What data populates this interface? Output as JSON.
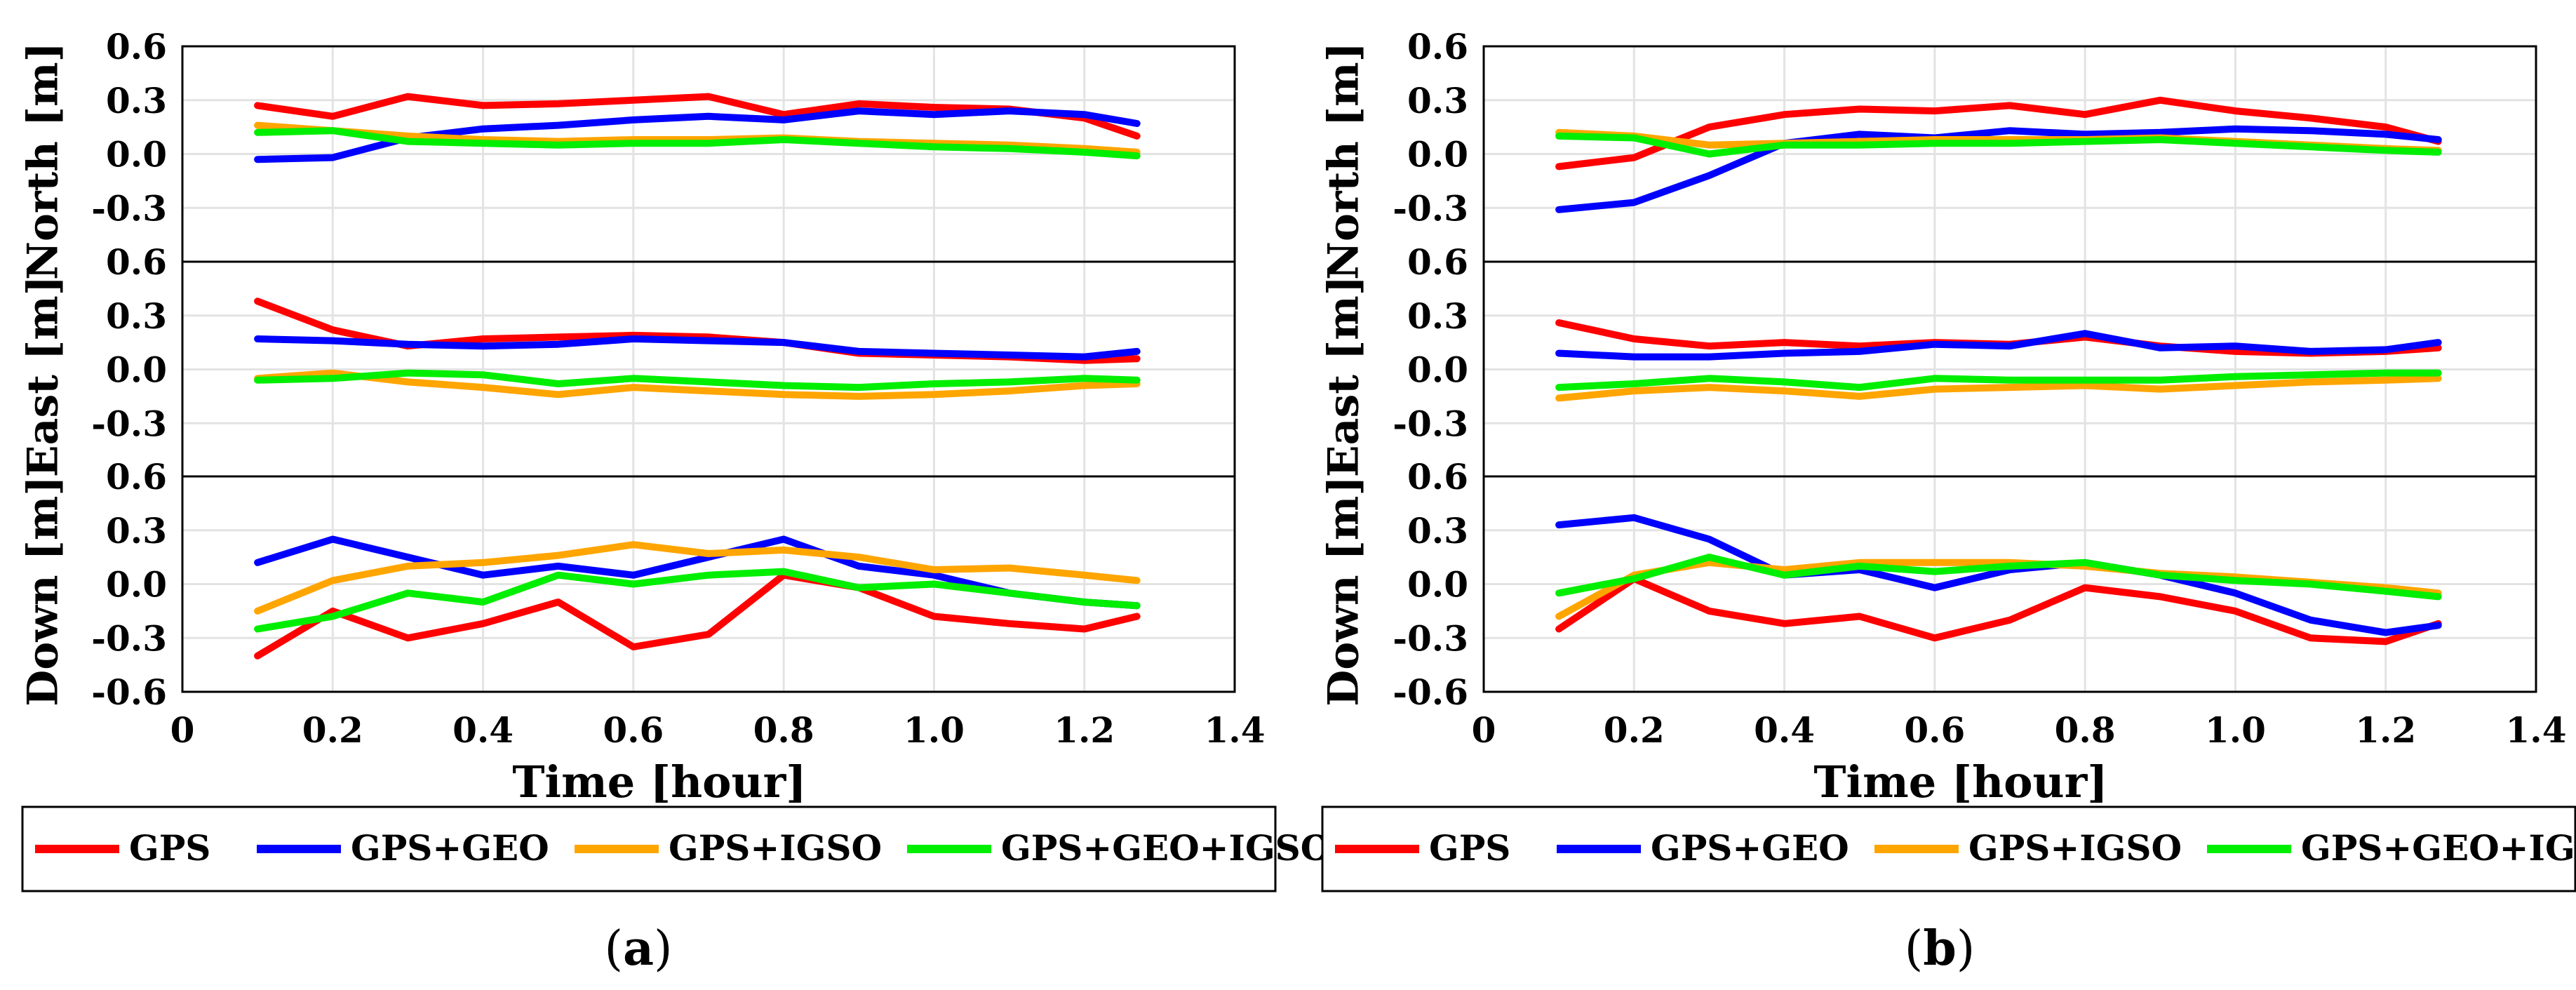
{
  "chart_data": [
    {
      "id": "a",
      "type": "line",
      "caption": "(a)",
      "xlabel": "Time [hour]",
      "xlim": [
        0,
        1.4
      ],
      "xticks": [
        0,
        0.2,
        0.4,
        0.6,
        0.8,
        1.0,
        1.2,
        1.4
      ],
      "xtick_labels": [
        "0",
        "0.2",
        "0.4",
        "0.6",
        "0.8",
        "1.0",
        "1.2",
        "1.4"
      ],
      "ylim": [
        -0.6,
        0.6
      ],
      "yticks": [
        0.6,
        0.3,
        0.0,
        -0.3,
        -0.6
      ],
      "ytick_labels": [
        "0.6",
        "0.3",
        "0.0",
        "-0.3",
        "-0.6"
      ],
      "grid": true,
      "legend_placement": "below",
      "legend": [
        "GPS",
        "GPS+GEO",
        "GPS+IGSO",
        "GPS+GEO+IGSO"
      ],
      "colors": {
        "GPS": "#ff0000",
        "GPS+GEO": "#0000ff",
        "GPS+IGSO": "#ffa500",
        "GPS+GEO+IGSO": "#00ee00"
      },
      "x": [
        0.1,
        0.2,
        0.3,
        0.4,
        0.5,
        0.6,
        0.7,
        0.8,
        0.9,
        1.0,
        1.1,
        1.2,
        1.27
      ],
      "panels": [
        {
          "ylabel": "North [m]",
          "series": [
            {
              "name": "GPS",
              "values": [
                0.27,
                0.21,
                0.32,
                0.27,
                0.28,
                0.3,
                0.32,
                0.22,
                0.28,
                0.26,
                0.25,
                0.2,
                0.1
              ]
            },
            {
              "name": "GPS+GEO",
              "values": [
                -0.03,
                -0.02,
                0.09,
                0.14,
                0.16,
                0.19,
                0.21,
                0.19,
                0.24,
                0.22,
                0.24,
                0.22,
                0.17
              ]
            },
            {
              "name": "GPS+IGSO",
              "values": [
                0.16,
                0.13,
                0.1,
                0.08,
                0.07,
                0.08,
                0.08,
                0.09,
                0.07,
                0.06,
                0.05,
                0.03,
                0.01
              ]
            },
            {
              "name": "GPS+GEO+IGSO",
              "values": [
                0.12,
                0.13,
                0.07,
                0.06,
                0.05,
                0.06,
                0.06,
                0.08,
                0.06,
                0.04,
                0.03,
                0.01,
                -0.01
              ]
            }
          ]
        },
        {
          "ylabel": "East [m]",
          "series": [
            {
              "name": "GPS",
              "values": [
                0.38,
                0.22,
                0.13,
                0.17,
                0.18,
                0.19,
                0.18,
                0.15,
                0.09,
                0.08,
                0.07,
                0.05,
                0.06
              ]
            },
            {
              "name": "GPS+GEO",
              "values": [
                0.17,
                0.16,
                0.14,
                0.13,
                0.14,
                0.17,
                0.16,
                0.15,
                0.1,
                0.09,
                0.08,
                0.07,
                0.1
              ]
            },
            {
              "name": "GPS+IGSO",
              "values": [
                -0.05,
                -0.02,
                -0.07,
                -0.1,
                -0.14,
                -0.1,
                -0.12,
                -0.14,
                -0.15,
                -0.14,
                -0.12,
                -0.09,
                -0.08
              ]
            },
            {
              "name": "GPS+GEO+IGSO",
              "values": [
                -0.06,
                -0.05,
                -0.02,
                -0.03,
                -0.08,
                -0.05,
                -0.07,
                -0.09,
                -0.1,
                -0.08,
                -0.07,
                -0.05,
                -0.06
              ]
            }
          ]
        },
        {
          "ylabel": "Down [m]",
          "series": [
            {
              "name": "GPS",
              "values": [
                -0.4,
                -0.15,
                -0.3,
                -0.22,
                -0.1,
                -0.35,
                -0.28,
                0.05,
                -0.02,
                -0.18,
                -0.22,
                -0.25,
                -0.18
              ]
            },
            {
              "name": "GPS+GEO",
              "values": [
                0.12,
                0.25,
                0.15,
                0.05,
                0.1,
                0.05,
                0.15,
                0.25,
                0.1,
                0.05,
                -0.05,
                -0.1,
                -0.12
              ]
            },
            {
              "name": "GPS+IGSO",
              "values": [
                -0.15,
                0.02,
                0.1,
                0.12,
                0.16,
                0.22,
                0.17,
                0.19,
                0.15,
                0.08,
                0.09,
                0.05,
                0.02
              ]
            },
            {
              "name": "GPS+GEO+IGSO",
              "values": [
                -0.25,
                -0.18,
                -0.05,
                -0.1,
                0.05,
                0.0,
                0.05,
                0.07,
                -0.02,
                0.0,
                -0.05,
                -0.1,
                -0.12
              ]
            }
          ]
        }
      ]
    },
    {
      "id": "b",
      "type": "line",
      "caption": "(b)",
      "xlabel": "Time [hour]",
      "xlim": [
        0,
        1.4
      ],
      "xticks": [
        0,
        0.2,
        0.4,
        0.6,
        0.8,
        1.0,
        1.2,
        1.4
      ],
      "xtick_labels": [
        "0",
        "0.2",
        "0.4",
        "0.6",
        "0.8",
        "1.0",
        "1.2",
        "1.4"
      ],
      "ylim": [
        -0.6,
        0.6
      ],
      "yticks": [
        0.6,
        0.3,
        0.0,
        -0.3,
        -0.6
      ],
      "ytick_labels": [
        "0.6",
        "0.3",
        "0.0",
        "-0.3",
        "-0.6"
      ],
      "grid": true,
      "legend_placement": "below",
      "legend": [
        "GPS",
        "GPS+GEO",
        "GPS+IGSO",
        "GPS+GEO+IGSO"
      ],
      "colors": {
        "GPS": "#ff0000",
        "GPS+GEO": "#0000ff",
        "GPS+IGSO": "#ffa500",
        "GPS+GEO+IGSO": "#00ee00"
      },
      "x": [
        0.1,
        0.2,
        0.3,
        0.4,
        0.5,
        0.6,
        0.7,
        0.8,
        0.9,
        1.0,
        1.1,
        1.2,
        1.27
      ],
      "panels": [
        {
          "ylabel": "North [m]",
          "series": [
            {
              "name": "GPS",
              "values": [
                -0.07,
                -0.02,
                0.15,
                0.22,
                0.25,
                0.24,
                0.27,
                0.22,
                0.3,
                0.24,
                0.2,
                0.15,
                0.07
              ]
            },
            {
              "name": "GPS+GEO",
              "values": [
                -0.31,
                -0.27,
                -0.12,
                0.06,
                0.11,
                0.09,
                0.13,
                0.11,
                0.12,
                0.14,
                0.13,
                0.11,
                0.08
              ]
            },
            {
              "name": "GPS+IGSO",
              "values": [
                0.12,
                0.1,
                0.05,
                0.06,
                0.07,
                0.08,
                0.08,
                0.08,
                0.09,
                0.07,
                0.05,
                0.03,
                0.02
              ]
            },
            {
              "name": "GPS+GEO+IGSO",
              "values": [
                0.1,
                0.09,
                0.0,
                0.05,
                0.05,
                0.06,
                0.06,
                0.07,
                0.08,
                0.06,
                0.04,
                0.02,
                0.01
              ]
            }
          ]
        },
        {
          "ylabel": "East [m]",
          "series": [
            {
              "name": "GPS",
              "values": [
                0.26,
                0.17,
                0.13,
                0.15,
                0.13,
                0.15,
                0.14,
                0.18,
                0.13,
                0.1,
                0.09,
                0.1,
                0.12
              ]
            },
            {
              "name": "GPS+GEO",
              "values": [
                0.09,
                0.07,
                0.07,
                0.09,
                0.1,
                0.14,
                0.13,
                0.2,
                0.12,
                0.13,
                0.1,
                0.11,
                0.15
              ]
            },
            {
              "name": "GPS+IGSO",
              "values": [
                -0.16,
                -0.12,
                -0.1,
                -0.12,
                -0.15,
                -0.11,
                -0.1,
                -0.09,
                -0.11,
                -0.09,
                -0.07,
                -0.06,
                -0.05
              ]
            },
            {
              "name": "GPS+GEO+IGSO",
              "values": [
                -0.1,
                -0.08,
                -0.05,
                -0.07,
                -0.1,
                -0.05,
                -0.06,
                -0.06,
                -0.06,
                -0.04,
                -0.03,
                -0.02,
                -0.02
              ]
            }
          ]
        },
        {
          "ylabel": "Down [m]",
          "series": [
            {
              "name": "GPS",
              "values": [
                -0.25,
                0.03,
                -0.15,
                -0.22,
                -0.18,
                -0.3,
                -0.2,
                -0.02,
                -0.07,
                -0.15,
                -0.3,
                -0.32,
                -0.22
              ]
            },
            {
              "name": "GPS+GEO",
              "values": [
                0.33,
                0.37,
                0.25,
                0.05,
                0.08,
                -0.02,
                0.08,
                0.12,
                0.05,
                -0.05,
                -0.2,
                -0.27,
                -0.23
              ]
            },
            {
              "name": "GPS+IGSO",
              "values": [
                -0.18,
                0.05,
                0.12,
                0.08,
                0.12,
                0.12,
                0.12,
                0.1,
                0.06,
                0.04,
                0.01,
                -0.02,
                -0.05
              ]
            },
            {
              "name": "GPS+GEO+IGSO",
              "values": [
                -0.05,
                0.03,
                0.15,
                0.05,
                0.1,
                0.07,
                0.1,
                0.12,
                0.05,
                0.02,
                0.0,
                -0.04,
                -0.07
              ]
            }
          ]
        }
      ]
    }
  ]
}
